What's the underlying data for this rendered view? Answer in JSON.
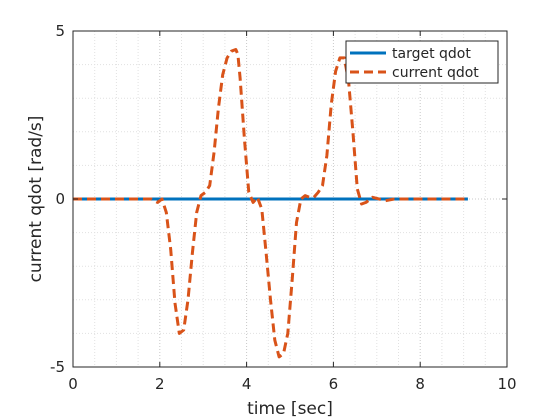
{
  "chart_data": {
    "type": "line",
    "title": "",
    "xlabel": "time [sec]",
    "ylabel": "current qdot [rad/s]",
    "xlim": [
      0,
      10
    ],
    "ylim": [
      -5,
      5
    ],
    "xticks": [
      0,
      2,
      4,
      6,
      8,
      10
    ],
    "xtick_labels": [
      "0",
      "2",
      "4",
      "6",
      "8",
      "10"
    ],
    "yticks": [
      -5,
      0,
      5
    ],
    "ytick_labels": [
      "-5",
      "0",
      "5"
    ],
    "grid": "on (major and minor, dotted)",
    "legend_location": "top-right",
    "series": [
      {
        "name": "target qdot",
        "style": "solid",
        "color": "#0072bd",
        "x": [
          0,
          9.1
        ],
        "y": [
          0,
          0
        ]
      },
      {
        "name": "current qdot",
        "style": "dashed",
        "color": "#d95319",
        "x": [
          0,
          1.8,
          1.95,
          2.05,
          2.15,
          2.25,
          2.35,
          2.45,
          2.55,
          2.65,
          2.75,
          2.85,
          2.95,
          3.05,
          3.15,
          3.25,
          3.35,
          3.45,
          3.55,
          3.65,
          3.75,
          3.8,
          3.85,
          3.95,
          4.05,
          4.15,
          4.25,
          4.35,
          4.45,
          4.55,
          4.65,
          4.75,
          4.85,
          4.95,
          5.05,
          5.15,
          5.25,
          5.35,
          5.45,
          5.55,
          5.65,
          5.75,
          5.85,
          5.95,
          6.05,
          6.15,
          6.25,
          6.35,
          6.45,
          6.55,
          6.65,
          6.75,
          6.9,
          7.2,
          7.4,
          7.6,
          9.1
        ],
        "y": [
          0,
          0,
          -0.1,
          0.0,
          -0.4,
          -1.5,
          -3.1,
          -4.0,
          -3.9,
          -3.0,
          -1.6,
          -0.4,
          0.1,
          0.2,
          0.4,
          1.4,
          2.7,
          3.7,
          4.2,
          4.4,
          4.45,
          4.3,
          3.6,
          1.8,
          0.2,
          -0.1,
          0.05,
          -0.3,
          -1.6,
          -3.0,
          -4.2,
          -4.7,
          -4.6,
          -4.0,
          -2.4,
          -0.7,
          0.0,
          0.1,
          0.05,
          0.05,
          0.2,
          0.4,
          1.3,
          2.8,
          3.8,
          4.2,
          4.2,
          3.5,
          2.0,
          0.3,
          -0.15,
          -0.1,
          0.05,
          -0.05,
          0.0,
          0.0,
          0.0
        ]
      }
    ]
  }
}
